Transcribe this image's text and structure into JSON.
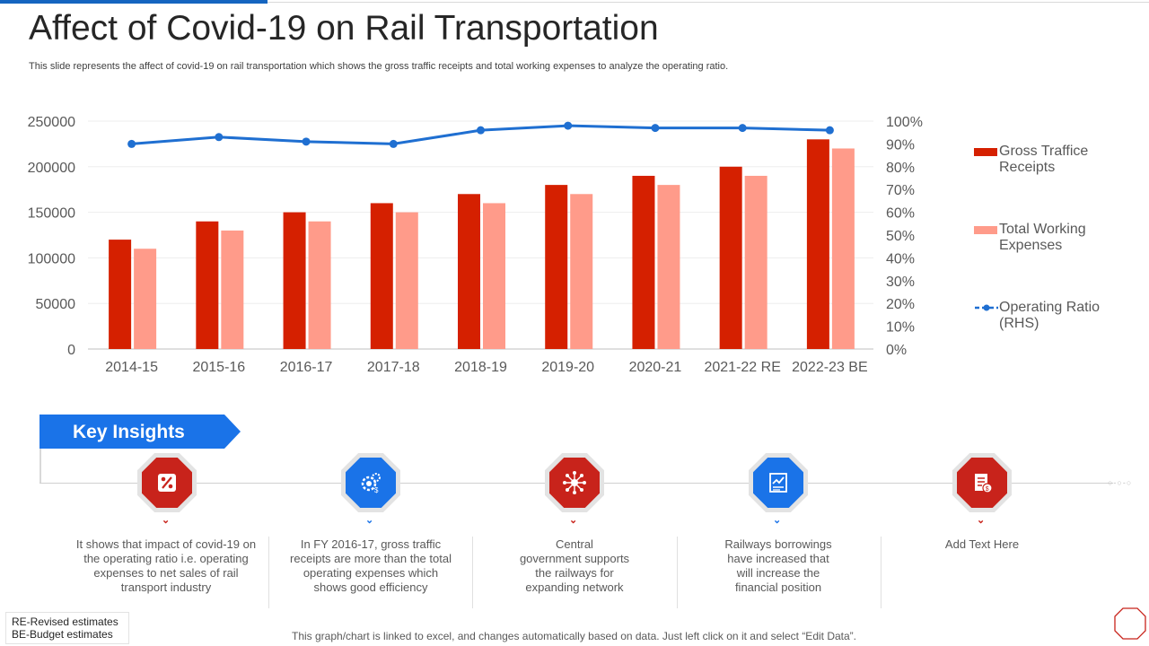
{
  "title": "Affect of Covid-19 on Rail Transportation",
  "subtitle": "This slide represents the affect of covid-19 on rail transportation which shows the gross traffic receipts and total working expenses to analyze the operating ratio.",
  "colors": {
    "gross": "#d52000",
    "expenses": "#ff9b8a",
    "ratio": "#1f6fd1",
    "accent_blue": "#1a73e8",
    "accent_red": "#c8231b"
  },
  "chart_data": {
    "type": "bar",
    "categories": [
      "2014-15",
      "2015-16",
      "2016-17",
      "2017-18",
      "2018-19",
      "2019-20",
      "2020-21",
      "2021-22 RE",
      "2022-23 BE"
    ],
    "series": [
      {
        "name": "Gross Traffice Receipts",
        "kind": "bar",
        "axis": "left",
        "values": [
          120000,
          140000,
          150000,
          160000,
          170000,
          180000,
          190000,
          200000,
          230000
        ]
      },
      {
        "name": "Total Working Expenses",
        "kind": "bar",
        "axis": "left",
        "values": [
          110000,
          130000,
          140000,
          150000,
          160000,
          170000,
          180000,
          190000,
          220000
        ]
      },
      {
        "name": "Operating Ratio (RHS)",
        "kind": "line",
        "axis": "right",
        "values": [
          0.9,
          0.93,
          0.91,
          0.9,
          0.96,
          0.98,
          0.97,
          0.97,
          0.96
        ]
      }
    ],
    "ylim_left": [
      0,
      250000
    ],
    "ylim_right": [
      0,
      1
    ],
    "yticks_left": [
      "0",
      "50000",
      "100000",
      "150000",
      "200000",
      "250000"
    ],
    "yticks_right": [
      "0%",
      "10%",
      "20%",
      "30%",
      "40%",
      "50%",
      "60%",
      "70%",
      "80%",
      "90%",
      "100%"
    ],
    "grid": true,
    "legend_position": "right"
  },
  "legend": [
    {
      "line1": "Gross Traffice",
      "line2": "Receipts"
    },
    {
      "line1": "Total Working",
      "line2": "Expenses"
    },
    {
      "line1": "Operating Ratio",
      "line2": "(RHS)"
    }
  ],
  "insights": {
    "banner": "Key Insights",
    "items": [
      {
        "icon": "percent-icon",
        "color": "#c8231b",
        "lines": [
          "It shows that impact of covid-19  on",
          "the operating ratio i.e. operating",
          "expenses to net sales of rail",
          "transport industry"
        ]
      },
      {
        "icon": "gears-money-icon",
        "color": "#1a73e8",
        "lines": [
          "In FY 2016-17,  gross traffic",
          "receipts are more than the total",
          "operating expenses which",
          "shows good efficiency"
        ]
      },
      {
        "icon": "network-hub-icon",
        "color": "#c8231b",
        "lines": [
          "Central",
          "government  supports",
          "the railways for",
          "expanding network"
        ]
      },
      {
        "icon": "growth-chart-icon",
        "color": "#1a73e8",
        "lines": [
          "Railways borrowings",
          "have increased that",
          "will increase the",
          "financial position"
        ]
      },
      {
        "icon": "document-money-icon",
        "color": "#c8231b",
        "lines": [
          "Add Text Here"
        ]
      }
    ]
  },
  "notes": {
    "line1": "RE-Revised estimates",
    "line2": "BE-Budget estimates"
  },
  "footer": "This graph/chart is linked to excel,  and changes automatically based on data. Just left click on it and select “Edit Data”."
}
